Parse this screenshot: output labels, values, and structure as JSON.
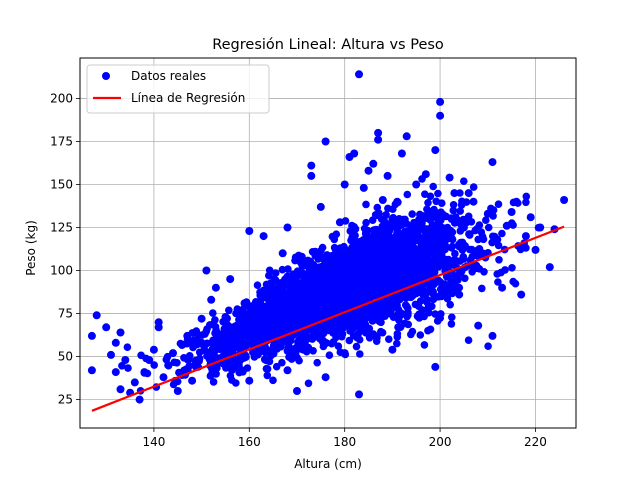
{
  "chart_data": {
    "type": "scatter",
    "title": "Regresión Lineal: Altura vs Peso",
    "xlabel": "Altura (cm)",
    "ylabel": "Peso (kg)",
    "xlim": [
      124.5,
      228.5
    ],
    "ylim": [
      8.5,
      223.5
    ],
    "xticks": [
      140,
      160,
      180,
      200,
      220
    ],
    "yticks": [
      25,
      50,
      75,
      100,
      125,
      150,
      175,
      200
    ],
    "grid": true,
    "legend_position": "top-left",
    "legend": [
      "Datos reales",
      "Línea de Regresión"
    ],
    "series": [
      {
        "name": "Datos reales",
        "kind": "scatter",
        "color": "#0000ff",
        "points": [
          [
            127,
            42
          ],
          [
            127,
            62
          ],
          [
            128,
            74
          ],
          [
            130,
            67
          ],
          [
            131,
            51
          ],
          [
            132,
            58
          ],
          [
            133,
            64
          ],
          [
            132,
            41
          ],
          [
            134,
            48
          ],
          [
            133,
            31
          ],
          [
            135,
            29
          ],
          [
            136,
            35
          ],
          [
            137,
            25
          ],
          [
            138,
            41
          ],
          [
            139,
            48
          ],
          [
            140,
            54
          ],
          [
            141,
            67
          ],
          [
            141,
            70
          ],
          [
            142,
            38
          ],
          [
            143,
            45
          ],
          [
            144,
            52
          ],
          [
            145,
            30
          ],
          [
            146,
            57
          ],
          [
            147,
            62
          ],
          [
            148,
            36
          ],
          [
            149,
            46
          ],
          [
            150,
            58
          ],
          [
            150,
            72
          ],
          [
            151,
            100
          ],
          [
            152,
            83
          ],
          [
            153,
            90
          ],
          [
            153,
            40
          ],
          [
            154,
            60
          ],
          [
            155,
            73
          ],
          [
            156,
            95
          ],
          [
            157,
            44
          ],
          [
            158,
            55
          ],
          [
            159,
            81
          ],
          [
            160,
            123
          ],
          [
            160,
            36
          ],
          [
            161,
            66
          ],
          [
            162,
            75
          ],
          [
            163,
            120
          ],
          [
            164,
            48
          ],
          [
            165,
            88
          ],
          [
            166,
            58
          ],
          [
            167,
            110
          ],
          [
            168,
            125
          ],
          [
            168,
            42
          ],
          [
            169,
            72
          ],
          [
            170,
            93
          ],
          [
            170,
            30
          ],
          [
            171,
            108
          ],
          [
            172,
            60
          ],
          [
            173,
            161
          ],
          [
            173,
            155
          ],
          [
            174,
            84
          ],
          [
            175,
            137
          ],
          [
            176,
            175
          ],
          [
            176,
            38
          ],
          [
            177,
            98
          ],
          [
            178,
            66
          ],
          [
            179,
            128
          ],
          [
            180,
            150
          ],
          [
            180,
            52
          ],
          [
            181,
            166
          ],
          [
            182,
            168
          ],
          [
            183,
            214
          ],
          [
            183,
            28
          ],
          [
            184,
            148
          ],
          [
            185,
            158
          ],
          [
            186,
            162
          ],
          [
            186,
            63
          ],
          [
            187,
            180
          ],
          [
            187,
            176
          ],
          [
            188,
            141
          ],
          [
            189,
            155
          ],
          [
            190,
            130
          ],
          [
            190,
            54
          ],
          [
            191,
            140
          ],
          [
            192,
            168
          ],
          [
            193,
            178
          ],
          [
            194,
            110
          ],
          [
            195,
            150
          ],
          [
            196,
            92
          ],
          [
            197,
            156
          ],
          [
            198,
            121
          ],
          [
            199,
            170
          ],
          [
            199,
            44
          ],
          [
            200,
            198
          ],
          [
            200,
            190
          ],
          [
            201,
            120
          ],
          [
            202,
            154
          ],
          [
            203,
            145
          ],
          [
            204,
            86
          ],
          [
            205,
            125
          ],
          [
            206,
            145
          ],
          [
            207,
            140
          ],
          [
            208,
            68
          ],
          [
            209,
            109
          ],
          [
            210,
            133
          ],
          [
            211,
            163
          ],
          [
            211,
            62
          ],
          [
            212,
            118
          ],
          [
            213,
            90
          ],
          [
            214,
            126
          ],
          [
            215,
            134
          ],
          [
            216,
            140
          ],
          [
            217,
            86
          ],
          [
            218,
            120
          ],
          [
            219,
            131
          ],
          [
            220,
            112
          ],
          [
            221,
            125
          ],
          [
            223,
            102
          ],
          [
            224,
            124
          ],
          [
            226,
            141
          ]
        ],
        "cloud_density": [
          [
            143,
            47
          ],
          [
            148,
            50
          ],
          [
            152,
            55
          ],
          [
            156,
            58
          ],
          [
            160,
            66
          ],
          [
            165,
            72
          ],
          [
            170,
            78
          ],
          [
            175,
            84
          ],
          [
            180,
            90
          ],
          [
            185,
            96
          ],
          [
            190,
            101
          ],
          [
            195,
            105
          ],
          [
            200,
            108
          ],
          [
            205,
            111
          ],
          [
            210,
            114
          ],
          [
            215,
            116
          ]
        ]
      },
      {
        "name": "Línea de Regresión",
        "kind": "line",
        "color": "#ff0000",
        "x": [
          127,
          226
        ],
        "y": [
          18.5,
          125.5
        ]
      }
    ]
  }
}
